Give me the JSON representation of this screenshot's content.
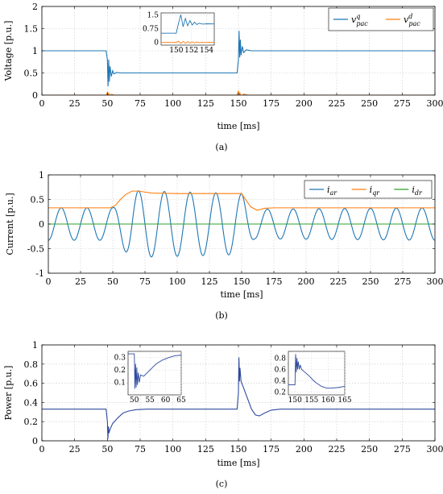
{
  "chart_data": [
    {
      "id": "a",
      "type": "line",
      "caption": "(a)",
      "xlabel": "time [ms]",
      "ylabel": "Voltage [p.u.]",
      "xlim": [
        0,
        300
      ],
      "ylim": [
        0,
        2
      ],
      "xticks": [
        0,
        25,
        50,
        75,
        100,
        125,
        150,
        175,
        200,
        225,
        250,
        275,
        300
      ],
      "yticks": [
        0,
        0.5,
        1,
        1.5,
        2
      ],
      "grid": true,
      "legend_position": "top-right",
      "series": [
        {
          "name": "v^q_pac",
          "label_main": "v",
          "label_sup": "q",
          "label_sub": "pac",
          "color": "#1f77b4",
          "points": [
            [
              0,
              1
            ],
            [
              49,
              1
            ],
            [
              50,
              0.8
            ],
            [
              50.5,
              0.2
            ],
            [
              51,
              0.8
            ],
            [
              51.5,
              0.3
            ],
            [
              52,
              0.65
            ],
            [
              53,
              0.42
            ],
            [
              54,
              0.55
            ],
            [
              55,
              0.48
            ],
            [
              57,
              0.51
            ],
            [
              60,
              0.5
            ],
            [
              149,
              0.5
            ],
            [
              150,
              0.8
            ],
            [
              150.5,
              1.45
            ],
            [
              151,
              0.85
            ],
            [
              151.5,
              1.25
            ],
            [
              152,
              0.9
            ],
            [
              153,
              1.1
            ],
            [
              154,
              0.96
            ],
            [
              156,
              1.02
            ],
            [
              160,
              1
            ],
            [
              300,
              1
            ]
          ]
        },
        {
          "name": "v^d_pac",
          "label_main": "v",
          "label_sup": "d",
          "label_sub": "pac",
          "color": "#ff7f0e",
          "points": [
            [
              0,
              0
            ],
            [
              49,
              0
            ],
            [
              50,
              0.06
            ],
            [
              50.5,
              -0.06
            ],
            [
              51,
              0.04
            ],
            [
              52,
              -0.03
            ],
            [
              53,
              0.02
            ],
            [
              55,
              0
            ],
            [
              149,
              0
            ],
            [
              150,
              0.1
            ],
            [
              150.5,
              -0.08
            ],
            [
              151,
              0.06
            ],
            [
              152,
              -0.04
            ],
            [
              154,
              0.02
            ],
            [
              157,
              0
            ],
            [
              300,
              0
            ]
          ]
        }
      ],
      "insets": [
        {
          "xlim": [
            148,
            155
          ],
          "ylim": [
            -0.15,
            1.6
          ],
          "xticks": [
            150,
            152,
            154
          ],
          "yticks": [
            0,
            0.75,
            1.5
          ],
          "series": [
            {
              "color": "#1f77b4",
              "points": [
                [
                  148,
                  0.5
                ],
                [
                  150,
                  0.5
                ],
                [
                  150.3,
                  1.05
                ],
                [
                  150.6,
                  1.5
                ],
                [
                  150.9,
                  0.85
                ],
                [
                  151.2,
                  1.3
                ],
                [
                  151.5,
                  0.9
                ],
                [
                  151.8,
                  1.18
                ],
                [
                  152.1,
                  0.94
                ],
                [
                  152.4,
                  1.1
                ],
                [
                  152.7,
                  0.97
                ],
                [
                  153,
                  1.04
                ],
                [
                  153.5,
                  0.99
                ],
                [
                  154,
                  1.01
                ],
                [
                  155,
                  1
                ]
              ]
            },
            {
              "color": "#ff7f0e",
              "points": [
                [
                  148,
                  0
                ],
                [
                  150,
                  0
                ],
                [
                  150.3,
                  0.06
                ],
                [
                  150.6,
                  -0.06
                ],
                [
                  150.9,
                  0.05
                ],
                [
                  151.2,
                  -0.05
                ],
                [
                  151.5,
                  0.04
                ],
                [
                  151.8,
                  -0.04
                ],
                [
                  152.1,
                  0.03
                ],
                [
                  152.4,
                  -0.03
                ],
                [
                  152.7,
                  0.02
                ],
                [
                  153,
                  -0.02
                ],
                [
                  153.4,
                  0.01
                ],
                [
                  153.8,
                  -0.01
                ],
                [
                  154.2,
                  0
                ],
                [
                  155,
                  0
                ]
              ]
            }
          ]
        }
      ]
    },
    {
      "id": "b",
      "type": "line",
      "caption": "(b)",
      "xlabel": "time [ms]",
      "ylabel": "Current [p.u.]",
      "xlim": [
        0,
        300
      ],
      "ylim": [
        -1,
        1
      ],
      "xticks": [
        0,
        25,
        50,
        75,
        100,
        125,
        150,
        175,
        200,
        225,
        250,
        275,
        300
      ],
      "yticks": [
        -1,
        -0.5,
        0,
        0.5,
        1
      ],
      "grid": true,
      "legend_position": "top-right",
      "series": [
        {
          "name": "i_ar",
          "label_main": "i",
          "label_sub": "ar",
          "color": "#1f77b4",
          "waveform": {
            "frequency_hz": 50,
            "amplitude_segments": [
              [
                0,
                0.33
              ],
              [
                50,
                0.33
              ],
              [
                65,
                0.68
              ],
              [
                150,
                0.62
              ],
              [
                160,
                0.3
              ],
              [
                300,
                0.33
              ]
            ]
          }
        },
        {
          "name": "i_qr",
          "label_main": "i",
          "label_sub": "qr",
          "color": "#ff7f0e",
          "points": [
            [
              0,
              0.33
            ],
            [
              48,
              0.33
            ],
            [
              52,
              0.38
            ],
            [
              56,
              0.5
            ],
            [
              60,
              0.6
            ],
            [
              65,
              0.67
            ],
            [
              70,
              0.67
            ],
            [
              80,
              0.63
            ],
            [
              100,
              0.62
            ],
            [
              150,
              0.62
            ],
            [
              153,
              0.5
            ],
            [
              157,
              0.35
            ],
            [
              162,
              0.28
            ],
            [
              168,
              0.32
            ],
            [
              175,
              0.33
            ],
            [
              300,
              0.33
            ]
          ]
        },
        {
          "name": "i_dr",
          "label_main": "i",
          "label_sub": "dr",
          "color": "#2ca02c",
          "points": [
            [
              0,
              0
            ],
            [
              300,
              0
            ]
          ]
        }
      ]
    },
    {
      "id": "c",
      "type": "line",
      "caption": "(c)",
      "xlabel": "time [ms]",
      "ylabel": "Power [p.u.]",
      "xlim": [
        0,
        300
      ],
      "ylim": [
        0,
        1
      ],
      "xticks": [
        0,
        25,
        50,
        75,
        100,
        125,
        150,
        175,
        200,
        225,
        250,
        275,
        300
      ],
      "yticks": [
        0,
        0.2,
        0.4,
        0.6,
        0.8,
        1
      ],
      "grid": true,
      "series": [
        {
          "color": "#2e4a9e",
          "points": [
            [
              0,
              0.33
            ],
            [
              49,
              0.33
            ],
            [
              50,
              0.2
            ],
            [
              50.4,
              0.02
            ],
            [
              50.8,
              0.15
            ],
            [
              51.2,
              0.08
            ],
            [
              52,
              0.12
            ],
            [
              54,
              0.18
            ],
            [
              58,
              0.24
            ],
            [
              62,
              0.29
            ],
            [
              66,
              0.31
            ],
            [
              72,
              0.325
            ],
            [
              80,
              0.33
            ],
            [
              149,
              0.33
            ],
            [
              150,
              0.5
            ],
            [
              150.4,
              0.87
            ],
            [
              150.8,
              0.62
            ],
            [
              151.2,
              0.76
            ],
            [
              152,
              0.62
            ],
            [
              154,
              0.55
            ],
            [
              157,
              0.44
            ],
            [
              160,
              0.33
            ],
            [
              163,
              0.27
            ],
            [
              166,
              0.26
            ],
            [
              170,
              0.29
            ],
            [
              175,
              0.32
            ],
            [
              182,
              0.33
            ],
            [
              300,
              0.33
            ]
          ]
        }
      ],
      "insets": [
        {
          "xlim": [
            48,
            65
          ],
          "ylim": [
            0,
            0.35
          ],
          "xticks": [
            50,
            55,
            60,
            65
          ],
          "yticks": [
            0.1,
            0.2,
            0.3
          ],
          "series": [
            {
              "color": "#2e4a9e",
              "points": [
                [
                  48,
                  0.33
                ],
                [
                  50,
                  0.33
                ],
                [
                  50.2,
                  0.05
                ],
                [
                  50.4,
                  0.25
                ],
                [
                  50.6,
                  0.06
                ],
                [
                  50.8,
                  0.22
                ],
                [
                  51,
                  0.08
                ],
                [
                  51.3,
                  0.18
                ],
                [
                  51.6,
                  0.1
                ],
                [
                  52,
                  0.16
                ],
                [
                  53,
                  0.15
                ],
                [
                  55,
                  0.2
                ],
                [
                  57,
                  0.25
                ],
                [
                  59,
                  0.28
                ],
                [
                  61,
                  0.3
                ],
                [
                  63,
                  0.315
                ],
                [
                  65,
                  0.32
                ]
              ]
            }
          ]
        },
        {
          "xlim": [
            148,
            165
          ],
          "ylim": [
            0.15,
            0.92
          ],
          "xticks": [
            150,
            155,
            160,
            165
          ],
          "yticks": [
            0.2,
            0.4,
            0.6,
            0.8
          ],
          "series": [
            {
              "color": "#2e4a9e",
              "points": [
                [
                  148,
                  0.33
                ],
                [
                  150,
                  0.33
                ],
                [
                  150.2,
                  0.87
                ],
                [
                  150.4,
                  0.55
                ],
                [
                  150.6,
                  0.8
                ],
                [
                  150.8,
                  0.6
                ],
                [
                  151,
                  0.74
                ],
                [
                  151.3,
                  0.6
                ],
                [
                  151.6,
                  0.68
                ],
                [
                  152,
                  0.6
                ],
                [
                  154,
                  0.5
                ],
                [
                  156,
                  0.38
                ],
                [
                  158,
                  0.3
                ],
                [
                  159.5,
                  0.27
                ],
                [
                  161,
                  0.27
                ],
                [
                  163,
                  0.28
                ],
                [
                  165,
                  0.3
                ]
              ]
            }
          ]
        }
      ]
    }
  ]
}
